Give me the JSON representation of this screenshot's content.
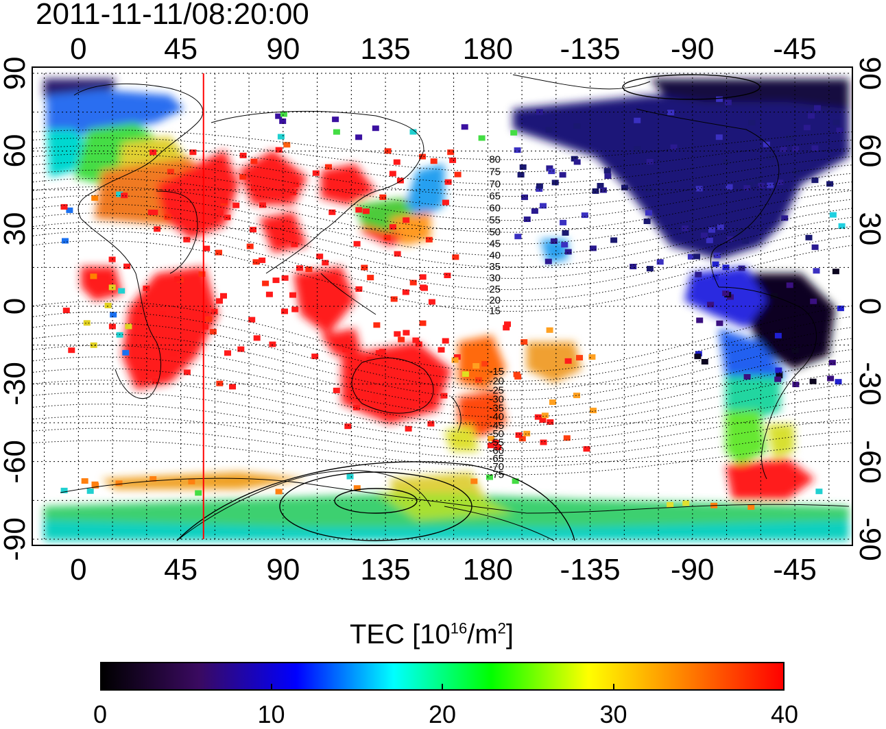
{
  "timestamp": "2011-11-11/08:20:00",
  "lon_ticks_top": [
    "0",
    "45",
    "90",
    "135",
    "180",
    "-135",
    "-90",
    "-45"
  ],
  "lon_ticks_bottom": [
    "0",
    "45",
    "90",
    "135",
    "180",
    "-135",
    "-90",
    "-45"
  ],
  "lat_ticks_left": [
    "90",
    "60",
    "30",
    "0",
    "-30",
    "-60",
    "-90"
  ],
  "lat_ticks_right": [
    "90",
    "60",
    "30",
    "0",
    "-30",
    "-60",
    "-90"
  ],
  "contour_labels": [
    "80",
    "75",
    "70",
    "65",
    "60",
    "55",
    "50",
    "45",
    "40",
    "35",
    "30",
    "25",
    "20",
    "15",
    "-15",
    "-20",
    "-25",
    "-30",
    "-35",
    "-40",
    "-45",
    "-50",
    "-55",
    "-60",
    "-65",
    "-70",
    "-75"
  ],
  "colorbar": {
    "title_prefix": "TEC  [10",
    "title_exp1": "16",
    "title_mid": "/m",
    "title_exp2": "2",
    "title_suffix": "]",
    "ticks": [
      "0",
      "10",
      "20",
      "30",
      "40"
    ],
    "min": 0,
    "max": 40,
    "colors": [
      "#000000",
      "#3a0a60",
      "#0000ff",
      "#00ffff",
      "#00ff00",
      "#ffff00",
      "#ff8000",
      "#ff0000"
    ]
  },
  "map": {
    "lon_start": -20,
    "lon_end": 340,
    "lat_range": [
      -90,
      90
    ],
    "marker_longitude": 55,
    "marker_color": "#ff0000"
  }
}
